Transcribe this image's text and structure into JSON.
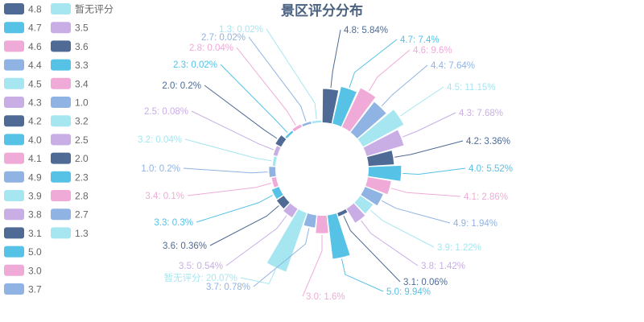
{
  "chart_data": {
    "type": "pie",
    "subtype": "nightingale-rose",
    "title": "景区评分分布",
    "palette": [
      "#4f6a94",
      "#55c2e6",
      "#f0aad8",
      "#8fb3e3",
      "#a6e6f0",
      "#c9aee6"
    ],
    "slices": [
      {
        "name": "4.8",
        "value": 5.84,
        "label": "4.8: 5.84%"
      },
      {
        "name": "4.7",
        "value": 7.4,
        "label": "4.7: 7.4%"
      },
      {
        "name": "4.6",
        "value": 9.6,
        "label": "4.6: 9.6%"
      },
      {
        "name": "4.4",
        "value": 7.64,
        "label": "4.4: 7.64%"
      },
      {
        "name": "4.5",
        "value": 11.15,
        "label": "4.5: 11.15%"
      },
      {
        "name": "4.3",
        "value": 7.68,
        "label": "4.3: 7.68%"
      },
      {
        "name": "4.2",
        "value": 3.36,
        "label": "4.2: 3.36%"
      },
      {
        "name": "4.0",
        "value": 5.52,
        "label": "4.0: 5.52%"
      },
      {
        "name": "4.1",
        "value": 2.86,
        "label": "4.1: 2.86%"
      },
      {
        "name": "4.9",
        "value": 1.94,
        "label": "4.9: 1.94%"
      },
      {
        "name": "3.9",
        "value": 1.22,
        "label": "3.9: 1.22%"
      },
      {
        "name": "3.8",
        "value": 1.42,
        "label": "3.8: 1.42%"
      },
      {
        "name": "3.1",
        "value": 0.06,
        "label": "3.1: 0.06%"
      },
      {
        "name": "5.0",
        "value": 9.94,
        "label": "5.0: 9.94%"
      },
      {
        "name": "3.0",
        "value": 1.6,
        "label": "3.0: 1.6%"
      },
      {
        "name": "3.7",
        "value": 0.78,
        "label": "3.7: 0.78%"
      },
      {
        "name": "暂无评分",
        "value": 20.07,
        "label": "暂无评分: 20.07%"
      },
      {
        "name": "3.5",
        "value": 0.54,
        "label": "3.5: 0.54%"
      },
      {
        "name": "3.6",
        "value": 0.36,
        "label": "3.6: 0.36%"
      },
      {
        "name": "3.3",
        "value": 0.3,
        "label": "3.3: 0.3%"
      },
      {
        "name": "3.4",
        "value": 0.1,
        "label": "3.4: 0.1%"
      },
      {
        "name": "1.0",
        "value": 0.2,
        "label": "1.0: 0.2%"
      },
      {
        "name": "3.2",
        "value": 0.04,
        "label": "3.2: 0.04%"
      },
      {
        "name": "2.5",
        "value": 0.08,
        "label": "2.5: 0.08%"
      },
      {
        "name": "2.0",
        "value": 0.2,
        "label": "2.0: 0.2%"
      },
      {
        "name": "2.3",
        "value": 0.02,
        "label": "2.3: 0.02%"
      },
      {
        "name": "2.8",
        "value": 0.04,
        "label": "2.8: 0.04%"
      },
      {
        "name": "2.7",
        "value": 0.02,
        "label": "2.7: 0.02%"
      },
      {
        "name": "1.3",
        "value": 0.02,
        "label": "1.3: 0.02%"
      }
    ],
    "legend": {
      "placement": "left",
      "columns": [
        [
          "4.8",
          "4.7",
          "4.6",
          "4.4",
          "4.5",
          "4.3",
          "4.2",
          "4.0",
          "4.1",
          "4.9",
          "3.9",
          "3.8",
          "3.1",
          "5.0",
          "3.0",
          "3.7"
        ],
        [
          "暂无评分",
          "3.5",
          "3.6",
          "3.3",
          "3.4",
          "1.0",
          "3.2",
          "2.5",
          "2.0",
          "2.3",
          "2.8",
          "2.7",
          "1.3"
        ]
      ]
    }
  }
}
